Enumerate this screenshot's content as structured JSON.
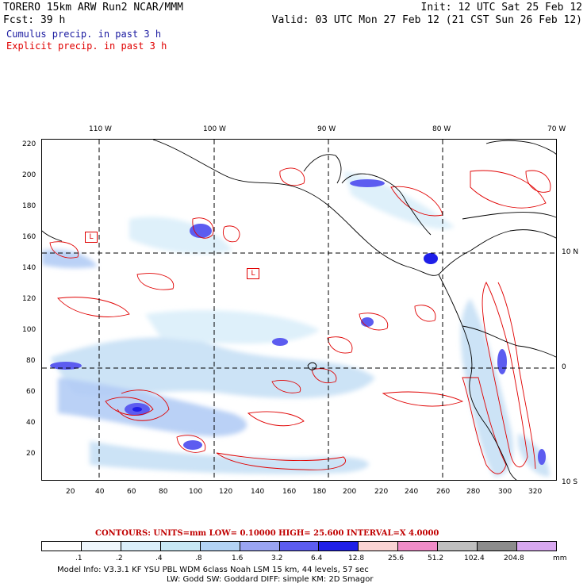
{
  "header": {
    "line1_left": "TORERO  15km ARW   Run2    NCAR/MMM",
    "line1_right": "Init: 12 UTC Sat 25 Feb 12",
    "line2_left": "Fcst:   39 h",
    "line2_right": "Valid: 03 UTC Mon 27 Feb 12 (21 CST Sun 26 Feb 12)",
    "legend_cumulus": "Cumulus precip. in past 3 h",
    "legend_explicit": "Explicit precip. in past 3 h"
  },
  "colors": {
    "cumulus_text": "#1a1aa0",
    "explicit_text": "#e00000",
    "contour": "#e00000",
    "grid": "#000000"
  },
  "map": {
    "lon_labels": [
      "110 W",
      "100 W",
      "90 W",
      "80 W",
      "70 W"
    ],
    "lat_labels_right": [
      "10 N",
      "0",
      "10 S"
    ],
    "y_ticks": [
      "220",
      "200",
      "180",
      "160",
      "140",
      "120",
      "100",
      "80",
      "60",
      "40",
      "20"
    ],
    "x_ticks": [
      "20",
      "40",
      "60",
      "80",
      "100",
      "120",
      "140",
      "160",
      "180",
      "200",
      "220",
      "240",
      "260",
      "280",
      "300",
      "320"
    ],
    "low_markers": [
      "L",
      "L"
    ]
  },
  "contours_line": {
    "text": "CONTOURS:  UNITS=mm  LOW= 0.10000      HIGH=  25.600      INTERVAL=X  4.0000"
  },
  "colorbar": {
    "labels": [
      ".1",
      ".2",
      ".4",
      ".8",
      "1.6",
      "3.2",
      "6.4",
      "12.8",
      "25.6",
      "51.2",
      "102.4",
      "204.8"
    ],
    "unit": "mm",
    "colors": [
      "#ffffff",
      "#eef6fc",
      "#daeefa",
      "#c7e8f5",
      "#b3d3f5",
      "#9aa4f2",
      "#5c5cf0",
      "#1f1fe8",
      "#fad4d4",
      "#f08cc8",
      "#c0c0c0",
      "#8c8c8c",
      "#d8a8f0"
    ]
  },
  "footer": {
    "line1": "Model Info: V3.3.1    KF     YSU PBL   WDM 6class  Noah LSM   15 km,    44 levels,    57 sec",
    "line2": "LW: Godd SW: Goddard DIFF: simple KM: 2D Smagor"
  }
}
